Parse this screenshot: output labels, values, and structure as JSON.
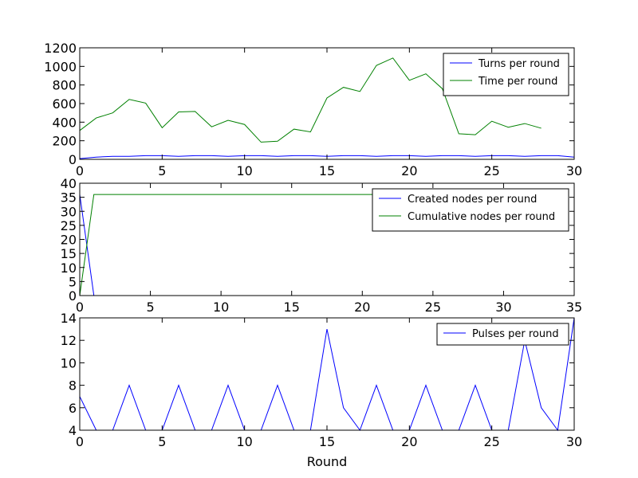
{
  "figure": {
    "xlabel": "Round"
  },
  "chart_data": [
    {
      "type": "line",
      "title": "",
      "xlabel": "",
      "ylabel": "",
      "xlim": [
        0,
        30
      ],
      "ylim": [
        0,
        1200
      ],
      "xticks": [
        0,
        5,
        10,
        15,
        20,
        25,
        30
      ],
      "yticks": [
        0,
        200,
        400,
        600,
        800,
        1000,
        1200
      ],
      "grid": false,
      "legend_position": "top-right",
      "series": [
        {
          "name": "Turns per round",
          "color": "#0000ff",
          "x": [
            0,
            1,
            2,
            3,
            4,
            5,
            6,
            7,
            8,
            9,
            10,
            11,
            12,
            13,
            14,
            15,
            16,
            17,
            18,
            19,
            20,
            21,
            22,
            23,
            24,
            25,
            26,
            27,
            28,
            29,
            30
          ],
          "values": [
            8,
            24,
            32,
            32,
            40,
            40,
            32,
            40,
            40,
            32,
            40,
            40,
            32,
            40,
            40,
            32,
            40,
            40,
            32,
            40,
            40,
            32,
            40,
            40,
            32,
            40,
            40,
            32,
            40,
            40,
            24
          ]
        },
        {
          "name": "Time per round",
          "color": "#008000",
          "x": [
            0,
            1,
            2,
            3,
            4,
            5,
            6,
            7,
            8,
            9,
            10,
            11,
            12,
            13,
            14,
            15,
            16,
            17,
            18,
            19,
            20,
            21,
            22,
            23,
            24,
            25,
            26,
            27,
            28
          ],
          "values": [
            310,
            445,
            500,
            645,
            605,
            340,
            510,
            515,
            350,
            420,
            375,
            185,
            195,
            325,
            295,
            660,
            775,
            730,
            1010,
            1090,
            850,
            920,
            760,
            275,
            265,
            410,
            345,
            385,
            335
          ]
        }
      ]
    },
    {
      "type": "line",
      "title": "",
      "xlabel": "",
      "ylabel": "",
      "xlim": [
        0,
        35
      ],
      "ylim": [
        0,
        40
      ],
      "xticks": [
        0,
        5,
        10,
        15,
        20,
        25,
        30,
        35
      ],
      "yticks": [
        0,
        5,
        10,
        15,
        20,
        25,
        30,
        35,
        40
      ],
      "grid": false,
      "legend_position": "top-right",
      "series": [
        {
          "name": "Created nodes per round",
          "color": "#0000ff",
          "x": [
            0,
            1,
            30
          ],
          "values": [
            36,
            0,
            0
          ]
        },
        {
          "name": "Cumulative nodes per round",
          "color": "#008000",
          "x": [
            0,
            1,
            30
          ],
          "values": [
            0,
            36,
            36
          ]
        }
      ]
    },
    {
      "type": "line",
      "title": "",
      "xlabel": "Round",
      "ylabel": "",
      "xlim": [
        0,
        30
      ],
      "ylim": [
        4,
        14
      ],
      "xticks": [
        0,
        5,
        10,
        15,
        20,
        25,
        30
      ],
      "yticks": [
        4,
        6,
        8,
        10,
        12,
        14
      ],
      "grid": false,
      "legend_position": "top-right",
      "series": [
        {
          "name": "Pulses per round",
          "color": "#0000ff",
          "x": [
            0,
            1,
            2,
            3,
            4,
            5,
            6,
            7,
            8,
            9,
            10,
            11,
            12,
            13,
            14,
            15,
            16,
            17,
            18,
            19,
            20,
            21,
            22,
            23,
            24,
            25,
            26,
            27,
            28,
            29,
            30
          ],
          "values": [
            7,
            4,
            4,
            8,
            4,
            4,
            8,
            4,
            4,
            8,
            4,
            4,
            8,
            4,
            4,
            13,
            6,
            4,
            8,
            4,
            4,
            8,
            4,
            4,
            8,
            4,
            4,
            12,
            6,
            4,
            14
          ]
        }
      ]
    }
  ]
}
